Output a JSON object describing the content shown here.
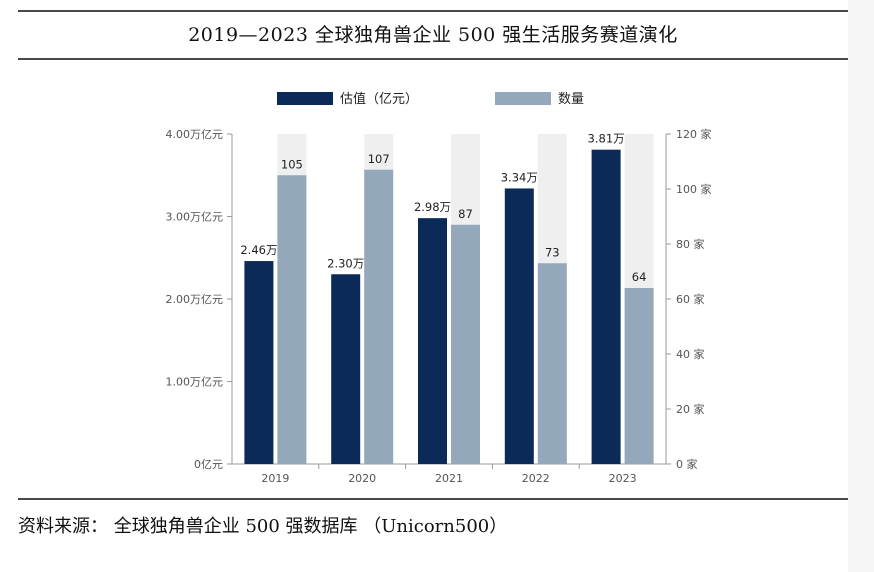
{
  "header": {
    "title": "2019—2023 全球独角兽企业 500 强生活服务赛道演化"
  },
  "footer": {
    "source": "资料来源： 全球独角兽企业 500 强数据库 （Unicorn500）"
  },
  "colors": {
    "valuation": "#0b2a57",
    "count": "#93a9bb",
    "column_shade": "#efefef"
  },
  "chart_data": {
    "type": "bar",
    "categories": [
      "2019",
      "2020",
      "2021",
      "2022",
      "2023"
    ],
    "series": [
      {
        "name": "估值（亿元）",
        "axis": "left",
        "values": [
          2.46,
          2.3,
          2.98,
          3.34,
          3.81
        ],
        "labels": [
          "2.46万",
          "2.30万",
          "2.98万",
          "3.34万",
          "3.81万"
        ]
      },
      {
        "name": "数量",
        "axis": "right",
        "values": [
          105,
          107,
          87,
          73,
          64
        ],
        "labels": [
          "105",
          "107",
          "87",
          "73",
          "64"
        ]
      }
    ],
    "ylim_left": [
      0,
      4
    ],
    "yticks_left": [
      "0亿元",
      "1.00万亿元",
      "2.00万亿元",
      "3.00万亿元",
      "4.00万亿元"
    ],
    "ylim_right": [
      0,
      120
    ],
    "yticks_right": [
      "0 家",
      "20 家",
      "40 家",
      "60 家",
      "80 家",
      "100 家",
      "120 家"
    ],
    "legend_position": "top",
    "grid": false
  }
}
